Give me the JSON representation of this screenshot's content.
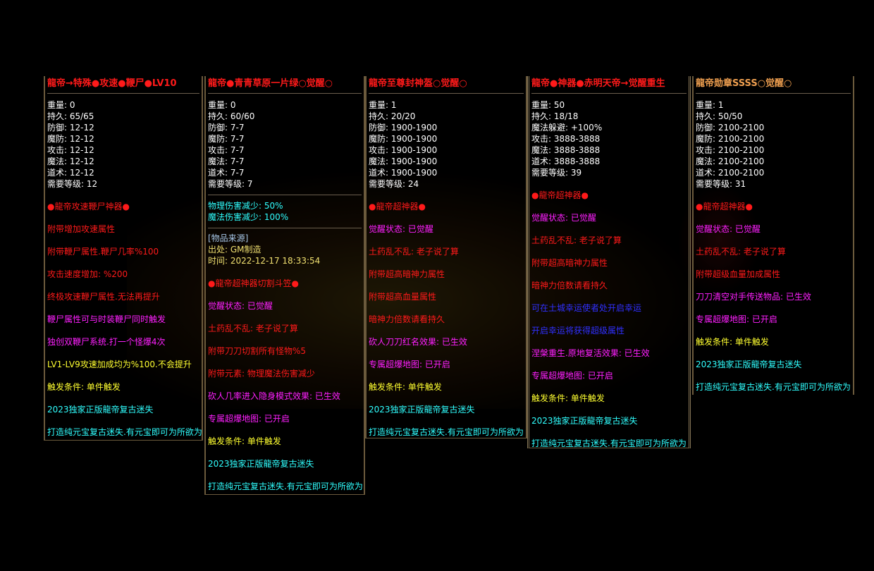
{
  "colors": {
    "white": "#ffffff",
    "red": "#ff1a1a",
    "magenta": "#ff20ff",
    "yellow": "#ffff30",
    "cyan": "#30ffff",
    "blue": "#3030ff",
    "source_label": "#a8c8e8",
    "source": "#f0e070",
    "title_orange": "#f0a050"
  },
  "panels": [
    {
      "title": "龍帝→特殊●攻速●鞭尸●LV10",
      "title_color": "#ff1a1a",
      "stats": [
        "重量: 0",
        "持久: 65/65",
        "防御: 12-12",
        "魔防: 12-12",
        "攻击: 12-12",
        "魔法: 12-12",
        "道术: 12-12",
        "需要等级: 12"
      ],
      "effects": [
        {
          "text": "●龍帝攻速鞭尸神器●",
          "color": "#ff1a1a"
        },
        {
          "text": "附带增加攻速属性",
          "color": "#ff1a1a"
        },
        {
          "text": "附带鞭尸属性.鞭尸几率%100",
          "color": "#ff1a1a"
        },
        {
          "text": "攻击速度增加: %200",
          "color": "#ff1a1a"
        },
        {
          "text": "终极攻速鞭尸属性.无法再提升",
          "color": "#ff1a1a"
        },
        {
          "text": "鞭尸属性可与时装鞭尸同时触发",
          "color": "#ff20ff"
        },
        {
          "text": "独创双鞭尸系统.打一个怪爆4次",
          "color": "#ff20ff"
        },
        {
          "text": "LV1-LV9攻速加成均为%100.不会提升",
          "color": "#ffff30"
        },
        {
          "text": "触发条件: 单件触发",
          "color": "#ffff30"
        },
        {
          "text": "2023独家正版龍帝复古迷失",
          "color": "#30ffff"
        },
        {
          "text": "打造纯元宝复古迷失.有元宝即可为所欲为",
          "color": "#30ffff"
        }
      ]
    },
    {
      "title": "龍帝●青青草原一片绿○觉醒○",
      "title_color": "#ff1a1a",
      "stats": [
        "重量: 0",
        "持久: 60/60",
        "防御: 7-7",
        "魔防: 7-7",
        "攻击: 7-7",
        "魔法: 7-7",
        "道术: 7-7",
        "需要等级: 7"
      ],
      "extra": [
        "物理伤害减少: 50%",
        "魔法伤害减少: 100%"
      ],
      "source": {
        "label": "[物品来源]",
        "origin": "出处: GM制造",
        "time": "时间: 2022-12-17 18:33:54"
      },
      "effects": [
        {
          "text": "●龍帝超神器切割斗笠●",
          "color": "#ff1a1a"
        },
        {
          "text": "觉醒状态: 已觉醒",
          "color": "#ff20ff"
        },
        {
          "text": "土药乱不乱: 老子说了算",
          "color": "#ff1a1a"
        },
        {
          "text": "附带刀刀切割所有怪物%5",
          "color": "#ff1a1a"
        },
        {
          "text": "附带元素: 物理魔法伤害减少",
          "color": "#ff1a1a"
        },
        {
          "text": "砍人几率进入隐身模式效果: 已生效",
          "color": "#ff20ff"
        },
        {
          "text": "专属超爆地图: 已开启",
          "color": "#ff20ff"
        },
        {
          "text": "触发条件: 单件触发",
          "color": "#ffff30"
        },
        {
          "text": "2023独家正版龍帝复古迷失",
          "color": "#30ffff"
        },
        {
          "text": "打造纯元宝复古迷失.有元宝即可为所欲为",
          "color": "#30ffff"
        }
      ]
    },
    {
      "title": "龍帝至尊封神盔○觉醒○",
      "title_color": "#ff1a1a",
      "stats": [
        "重量: 1",
        "持久: 20/20",
        "防御: 1900-1900",
        "魔防: 1900-1900",
        "攻击: 1900-1900",
        "魔法: 1900-1900",
        "道术: 1900-1900",
        "需要等级: 24"
      ],
      "effects": [
        {
          "text": "●龍帝超神器●",
          "color": "#ff1a1a"
        },
        {
          "text": "觉醒状态: 已觉醒",
          "color": "#ff20ff"
        },
        {
          "text": "土药乱不乱: 老子说了算",
          "color": "#ff1a1a"
        },
        {
          "text": "附带超高暗神力属性",
          "color": "#ff1a1a"
        },
        {
          "text": "附带超高血量属性",
          "color": "#ff1a1a"
        },
        {
          "text": "暗神力倍数请看持久",
          "color": "#ff1a1a"
        },
        {
          "text": "砍人刀刀红名效果: 已生效",
          "color": "#ff20ff"
        },
        {
          "text": "专属超爆地图: 已开启",
          "color": "#ff20ff"
        },
        {
          "text": "触发条件: 单件触发",
          "color": "#ffff30"
        },
        {
          "text": "2023独家正版龍帝复古迷失",
          "color": "#30ffff"
        },
        {
          "text": "打造纯元宝复古迷失.有元宝即可为所欲为",
          "color": "#30ffff"
        }
      ]
    },
    {
      "title": "龍帝●神器●赤明天帝→觉醒重生",
      "title_color": "#ff1a1a",
      "stats": [
        "重量: 50",
        "持久: 18/18",
        "魔法躲避: +100%",
        "攻击: 3888-3888",
        "魔法: 3888-3888",
        "道术: 3888-3888",
        "需要等级: 39"
      ],
      "effects": [
        {
          "text": "●龍帝超神器●",
          "color": "#ff1a1a"
        },
        {
          "text": "觉醒状态: 已觉醒",
          "color": "#ff20ff"
        },
        {
          "text": "土药乱不乱: 老子说了算",
          "color": "#ff1a1a"
        },
        {
          "text": "附带超高暗神力属性",
          "color": "#ff1a1a"
        },
        {
          "text": "暗神力倍数请看持久",
          "color": "#ff1a1a"
        },
        {
          "text": "可在土城幸运使者处开启幸运",
          "color": "#3030ff"
        },
        {
          "text": "开启幸运将获得超级属性",
          "color": "#3030ff"
        },
        {
          "text": "涅槃重生.原地复活效果: 已生效",
          "color": "#ff20ff"
        },
        {
          "text": "专属超爆地图: 已开启",
          "color": "#ff20ff"
        },
        {
          "text": "触发条件: 单件触发",
          "color": "#ffff30"
        },
        {
          "text": "2023独家正版龍帝复古迷失",
          "color": "#30ffff"
        },
        {
          "text": "打造纯元宝复古迷失.有元宝即可为所欲为",
          "color": "#30ffff"
        }
      ]
    },
    {
      "title": "龍帝勋章SSSS○觉醒○",
      "title_color": "#f0a050",
      "stats": [
        "重量: 1",
        "持久: 50/50",
        "防御: 2100-2100",
        "魔防: 2100-2100",
        "攻击: 2100-2100",
        "魔法: 2100-2100",
        "道术: 2100-2100",
        "需要等级: 31"
      ],
      "effects": [
        {
          "text": "●龍帝超神器●",
          "color": "#ff1a1a"
        },
        {
          "text": "觉醒状态: 已觉醒",
          "color": "#ff20ff"
        },
        {
          "text": "土药乱不乱: 老子说了算",
          "color": "#ff1a1a"
        },
        {
          "text": "附带超级血量加成属性",
          "color": "#ff1a1a"
        },
        {
          "text": "刀刀清空对手传送物品: 已生效",
          "color": "#ff20ff"
        },
        {
          "text": "专属超爆地图: 已开启",
          "color": "#ff20ff"
        },
        {
          "text": "触发条件: 单件触发",
          "color": "#ffff30"
        },
        {
          "text": "2023独家正版龍帝复古迷失",
          "color": "#30ffff"
        },
        {
          "text": "打造纯元宝复古迷失.有元宝即可为所欲为",
          "color": "#30ffff"
        }
      ]
    }
  ]
}
